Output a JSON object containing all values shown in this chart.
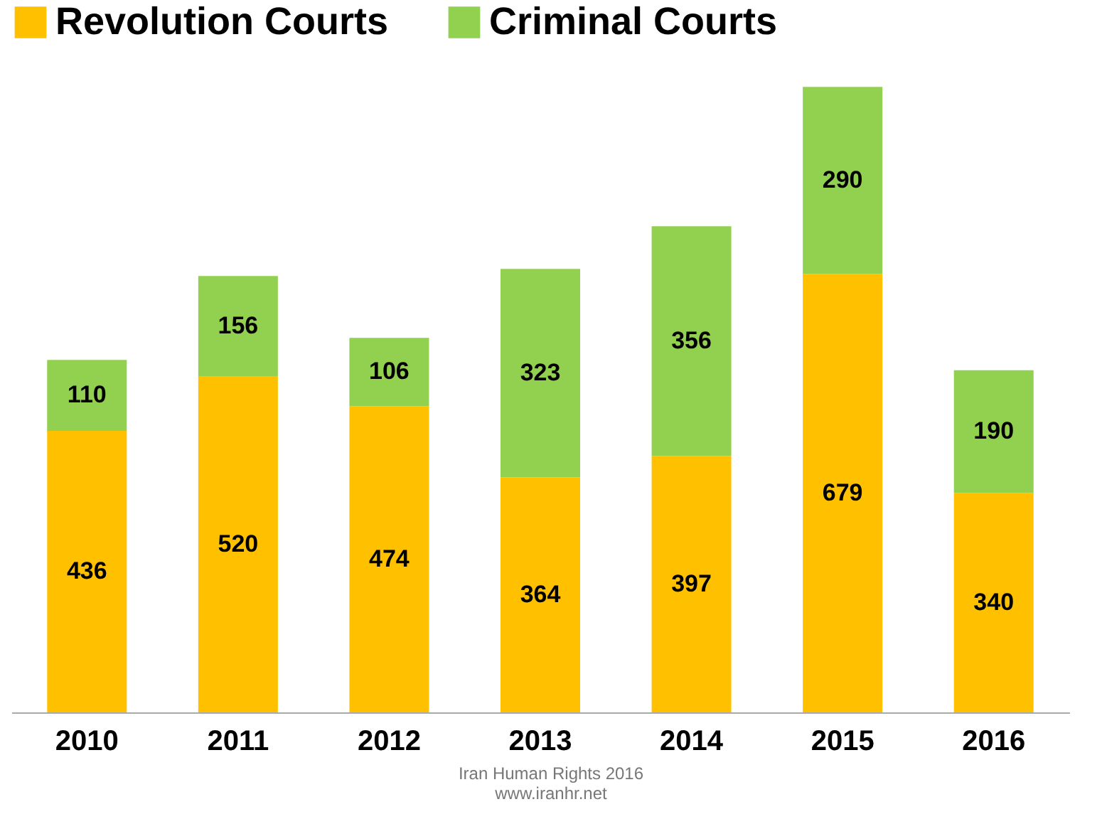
{
  "chart_data": {
    "type": "bar",
    "stacked": true,
    "categories": [
      "2010",
      "2011",
      "2012",
      "2013",
      "2014",
      "2015",
      "2016"
    ],
    "series": [
      {
        "name": "Revolution Courts",
        "color": "#ffc000",
        "values": [
          436,
          520,
          474,
          364,
          397,
          679,
          340
        ]
      },
      {
        "name": "Criminal Courts",
        "color": "#92d050",
        "values": [
          110,
          156,
          106,
          323,
          356,
          290,
          190
        ]
      }
    ],
    "data_labels": true,
    "legend": "top",
    "annotations": [
      "Iran Human Rights  2016",
      "www.iranhr.net"
    ]
  }
}
